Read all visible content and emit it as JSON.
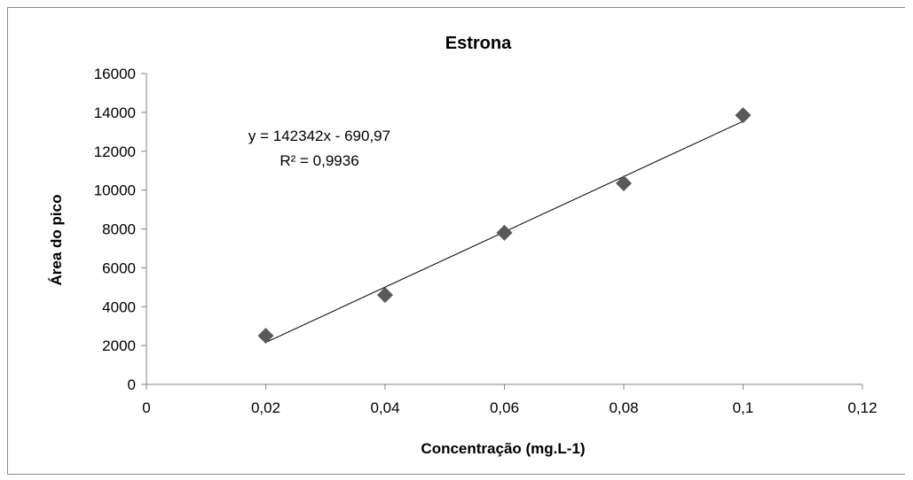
{
  "chart_data": {
    "type": "scatter",
    "title": "Estrona",
    "xlabel": "Concentração (mg.L-1)",
    "ylabel": "Área do pico",
    "xlim": [
      0,
      0.12
    ],
    "ylim": [
      0,
      16000
    ],
    "x_ticks": [
      0,
      0.02,
      0.04,
      0.06,
      0.08,
      0.1,
      0.12
    ],
    "x_tick_labels": [
      "0",
      "0,02",
      "0,04",
      "0,06",
      "0,08",
      "0,1",
      "0,12"
    ],
    "y_ticks": [
      0,
      2000,
      4000,
      6000,
      8000,
      10000,
      12000,
      14000,
      16000
    ],
    "y_tick_labels": [
      "0",
      "2000",
      "4000",
      "6000",
      "8000",
      "10000",
      "12000",
      "14000",
      "16000"
    ],
    "grid": false,
    "legend": "none",
    "series": [
      {
        "marker": "diamond",
        "color": "#595959",
        "x": [
          0.02,
          0.04,
          0.06,
          0.08,
          0.1
        ],
        "y": [
          2500,
          4600,
          7800,
          10350,
          13850
        ]
      }
    ],
    "trendline": {
      "type": "linear",
      "slope": 142342,
      "intercept": -690.97,
      "x_range": [
        0.02,
        0.1
      ],
      "color": "#000000",
      "equation_label": "y = 142342x - 690,97",
      "r2_label": "R² = 0,9936"
    }
  }
}
